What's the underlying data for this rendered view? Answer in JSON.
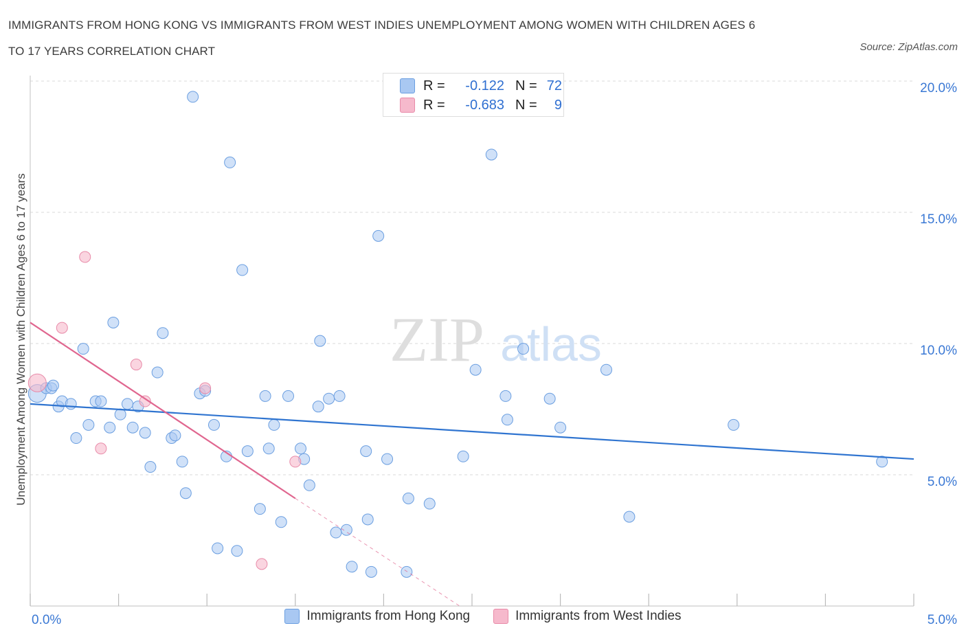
{
  "header": {
    "title_line1": "IMMIGRANTS FROM HONG KONG VS IMMIGRANTS FROM WEST INDIES UNEMPLOYMENT AMONG WOMEN WITH CHILDREN AGES 6",
    "title_line2": "TO 17 YEARS CORRELATION CHART",
    "source": "Source: ZipAtlas.com"
  },
  "watermark": {
    "zip": "ZIP",
    "atlas": "atlas"
  },
  "stats": {
    "rows": [
      {
        "r_label": "R =",
        "r_value": "-0.122",
        "n_label": "N =",
        "n_value": "72"
      },
      {
        "r_label": "R =",
        "r_value": "-0.683",
        "n_label": "N =",
        "n_value": "9"
      }
    ]
  },
  "colors": {
    "blue_fill": "#a9c8f2",
    "blue_stroke": "#6a9ee0",
    "blue_line": "#2f74d0",
    "pink_fill": "#f6b9cc",
    "pink_stroke": "#e88aa8",
    "pink_line": "#e0668f",
    "axis_text": "#3a78d4",
    "grid": "#d9d9d9"
  },
  "chart_data": {
    "type": "scatter",
    "title": "IMMIGRANTS FROM HONG KONG VS IMMIGRANTS FROM WEST INDIES UNEMPLOYMENT AMONG WOMEN WITH CHILDREN AGES 6 TO 17 YEARS CORRELATION CHART",
    "xlabel": "",
    "ylabel": "Unemployment Among Women with Children Ages 6 to 17 years",
    "xlim": [
      0,
      5.0
    ],
    "ylim": [
      0,
      20.0
    ],
    "x_tick_labels": [
      "0.0%",
      "5.0%"
    ],
    "y_ticks": [
      5.0,
      10.0,
      15.0,
      20.0
    ],
    "y_tick_labels": [
      "5.0%",
      "10.0%",
      "15.0%",
      "20.0%"
    ],
    "legend_position": "bottom-center",
    "series": [
      {
        "name": "Immigrants from Hong Kong",
        "color": "#a9c8f2",
        "r": -0.122,
        "n": 72,
        "trend": {
          "x": [
            0.0,
            5.0
          ],
          "y": [
            7.7,
            5.6
          ]
        },
        "points": [
          {
            "x": 0.04,
            "y": 8.1
          },
          {
            "x": 0.09,
            "y": 8.3
          },
          {
            "x": 0.12,
            "y": 8.3
          },
          {
            "x": 0.16,
            "y": 7.6
          },
          {
            "x": 0.18,
            "y": 7.8
          },
          {
            "x": 0.23,
            "y": 7.7
          },
          {
            "x": 0.3,
            "y": 9.8
          },
          {
            "x": 0.26,
            "y": 6.4
          },
          {
            "x": 0.33,
            "y": 6.9
          },
          {
            "x": 0.37,
            "y": 7.8
          },
          {
            "x": 0.4,
            "y": 7.8
          },
          {
            "x": 0.45,
            "y": 6.8
          },
          {
            "x": 0.47,
            "y": 10.8
          },
          {
            "x": 0.51,
            "y": 7.3
          },
          {
            "x": 0.55,
            "y": 7.7
          },
          {
            "x": 0.58,
            "y": 6.8
          },
          {
            "x": 0.61,
            "y": 7.6
          },
          {
            "x": 0.65,
            "y": 6.6
          },
          {
            "x": 0.68,
            "y": 5.3
          },
          {
            "x": 0.72,
            "y": 8.9
          },
          {
            "x": 0.75,
            "y": 10.4
          },
          {
            "x": 0.8,
            "y": 6.4
          },
          {
            "x": 0.82,
            "y": 6.5
          },
          {
            "x": 0.86,
            "y": 5.5
          },
          {
            "x": 0.88,
            "y": 4.3
          },
          {
            "x": 0.92,
            "y": 19.4
          },
          {
            "x": 0.96,
            "y": 8.1
          },
          {
            "x": 0.99,
            "y": 8.2
          },
          {
            "x": 1.04,
            "y": 6.9
          },
          {
            "x": 1.06,
            "y": 2.2
          },
          {
            "x": 1.11,
            "y": 5.7
          },
          {
            "x": 1.13,
            "y": 16.9
          },
          {
            "x": 1.17,
            "y": 2.1
          },
          {
            "x": 1.2,
            "y": 12.8
          },
          {
            "x": 1.23,
            "y": 5.9
          },
          {
            "x": 1.3,
            "y": 3.7
          },
          {
            "x": 1.33,
            "y": 8.0
          },
          {
            "x": 1.35,
            "y": 6.0
          },
          {
            "x": 1.38,
            "y": 6.9
          },
          {
            "x": 1.42,
            "y": 3.2
          },
          {
            "x": 1.46,
            "y": 8.0
          },
          {
            "x": 1.53,
            "y": 6.0
          },
          {
            "x": 1.55,
            "y": 5.6
          },
          {
            "x": 1.58,
            "y": 4.6
          },
          {
            "x": 1.63,
            "y": 7.6
          },
          {
            "x": 1.64,
            "y": 10.1
          },
          {
            "x": 1.69,
            "y": 7.9
          },
          {
            "x": 1.73,
            "y": 2.8
          },
          {
            "x": 1.75,
            "y": 8.0
          },
          {
            "x": 1.79,
            "y": 2.9
          },
          {
            "x": 1.82,
            "y": 1.5
          },
          {
            "x": 1.9,
            "y": 5.9
          },
          {
            "x": 1.91,
            "y": 3.3
          },
          {
            "x": 1.93,
            "y": 1.3
          },
          {
            "x": 1.97,
            "y": 14.1
          },
          {
            "x": 2.02,
            "y": 5.6
          },
          {
            "x": 2.13,
            "y": 1.3
          },
          {
            "x": 2.14,
            "y": 4.1
          },
          {
            "x": 2.26,
            "y": 3.9
          },
          {
            "x": 2.45,
            "y": 5.7
          },
          {
            "x": 2.52,
            "y": 9.0
          },
          {
            "x": 2.61,
            "y": 17.2
          },
          {
            "x": 2.69,
            "y": 8.0
          },
          {
            "x": 2.7,
            "y": 7.1
          },
          {
            "x": 2.79,
            "y": 9.8
          },
          {
            "x": 2.94,
            "y": 7.9
          },
          {
            "x": 3.0,
            "y": 6.8
          },
          {
            "x": 3.26,
            "y": 9.0
          },
          {
            "x": 3.39,
            "y": 3.4
          },
          {
            "x": 3.98,
            "y": 6.9
          },
          {
            "x": 4.82,
            "y": 5.5
          },
          {
            "x": 0.13,
            "y": 8.4
          }
        ]
      },
      {
        "name": "Immigrants from West Indies",
        "color": "#f6b9cc",
        "r": -0.683,
        "n": 9,
        "trend": {
          "x": [
            0.0,
            1.5
          ],
          "y": [
            10.8,
            4.1
          ]
        },
        "trend_dashed": {
          "x": [
            1.5,
            2.43
          ],
          "y": [
            4.1,
            0.0
          ]
        },
        "points": [
          {
            "x": 0.04,
            "y": 8.5
          },
          {
            "x": 0.31,
            "y": 13.3
          },
          {
            "x": 0.18,
            "y": 10.6
          },
          {
            "x": 0.6,
            "y": 9.2
          },
          {
            "x": 0.65,
            "y": 7.8
          },
          {
            "x": 0.99,
            "y": 8.3
          },
          {
            "x": 0.4,
            "y": 6.0
          },
          {
            "x": 1.5,
            "y": 5.5
          },
          {
            "x": 1.31,
            "y": 1.6
          }
        ]
      }
    ]
  }
}
